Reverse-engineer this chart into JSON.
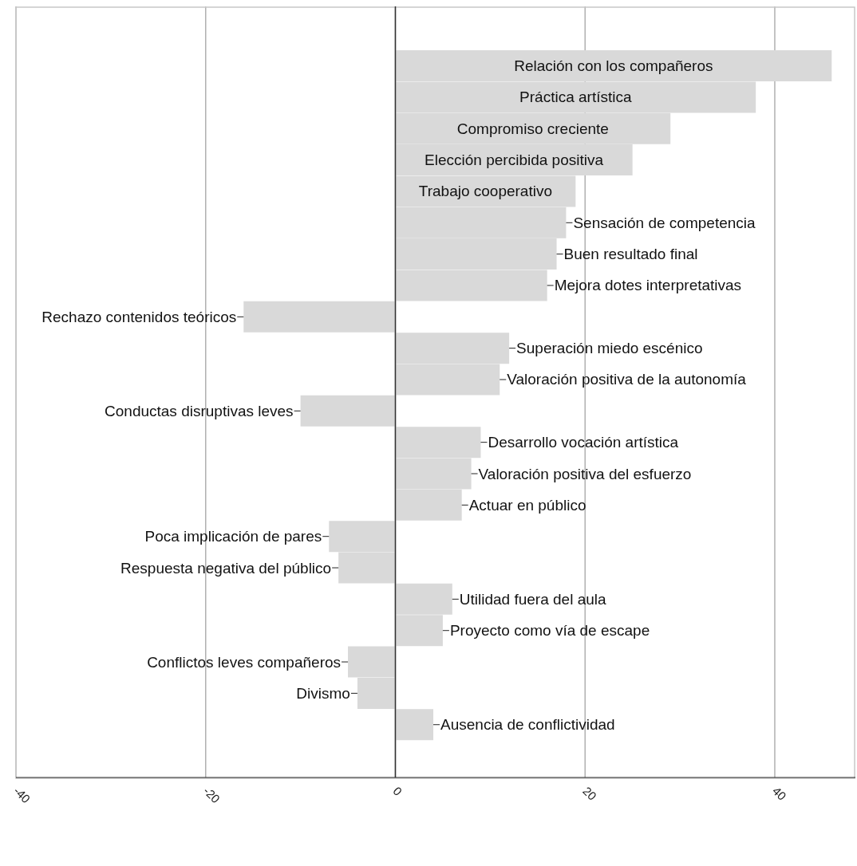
{
  "chart_data": {
    "type": "bar",
    "orientation": "horizontal",
    "categories": [
      "Relación con los compañeros",
      "Práctica artística",
      "Compromiso creciente",
      "Elección percibida positiva",
      "Trabajo cooperativo",
      "Sensación de competencia",
      "Buen resultado final",
      "Mejora dotes interpretativas",
      "Rechazo contenidos teóricos",
      "Superación miedo escénico",
      "Valoración positiva de la autonomía",
      "Conductas disruptivas leves",
      "Desarrollo vocación artística",
      "Valoración positiva del esfuerzo",
      "Actuar en público",
      "Poca implicación de pares",
      "Respuesta negativa del público",
      "Utilidad fuera del aula",
      "Proyecto como vía de escape",
      "Conflictos leves compañeros",
      "Divismo",
      "Ausencia de conflictividad"
    ],
    "values": [
      46,
      38,
      29,
      25,
      19,
      18,
      17,
      16,
      -16,
      12,
      11,
      -10,
      9,
      8,
      7,
      -7,
      -6,
      6,
      5,
      -5,
      -4,
      4
    ],
    "color": "#d9d9d9",
    "xlim": [
      -40,
      48.5
    ],
    "xticks": [
      -40,
      -20,
      0,
      20,
      40
    ],
    "grid": "x"
  }
}
